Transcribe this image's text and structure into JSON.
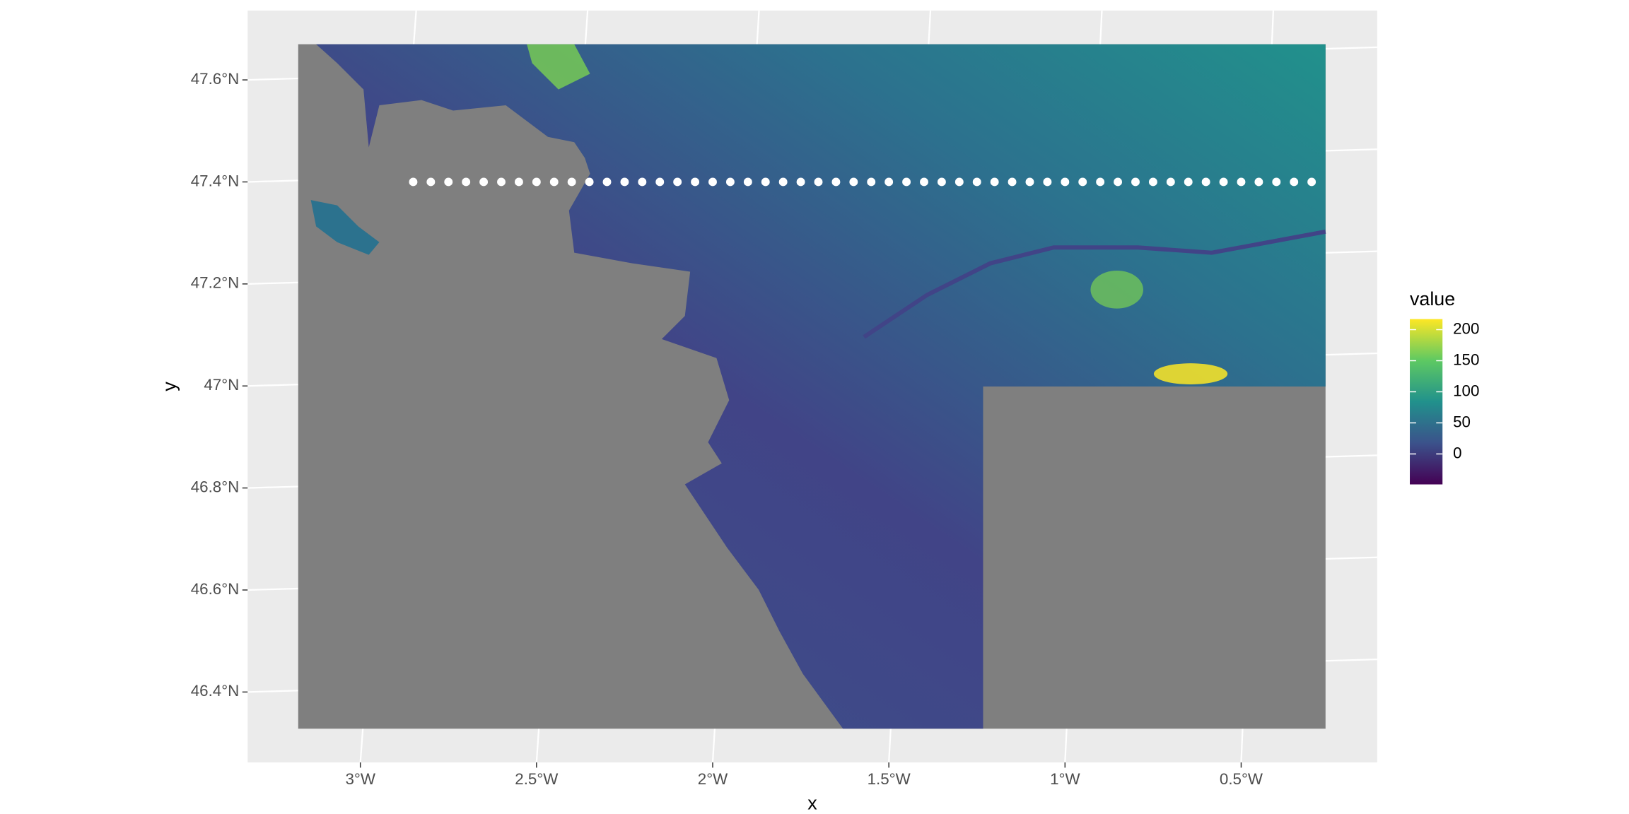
{
  "chart_data": {
    "type": "scatter",
    "xlabel": "x",
    "ylabel": "y",
    "xlim": [
      -3.32,
      -0.114
    ],
    "ylim": [
      46.262,
      47.736
    ],
    "xticks": [
      {
        "value": -3,
        "label": "3°W"
      },
      {
        "value": -2.5,
        "label": "2.5°W"
      },
      {
        "value": -2,
        "label": "2°W"
      },
      {
        "value": -1.5,
        "label": "1.5°W"
      },
      {
        "value": -1,
        "label": "1°W"
      },
      {
        "value": -0.5,
        "label": "0.5°W"
      }
    ],
    "yticks": [
      {
        "value": 46.4,
        "label": "46.4°N"
      },
      {
        "value": 46.6,
        "label": "46.6°N"
      },
      {
        "value": 46.8,
        "label": "46.8°N"
      },
      {
        "value": 47,
        "label": "47°N"
      },
      {
        "value": 47.2,
        "label": "47.2°N"
      },
      {
        "value": 47.4,
        "label": "47.4°N"
      },
      {
        "value": 47.6,
        "label": "47.6°N"
      }
    ],
    "grid": true,
    "color": "#ffffff",
    "x": [
      -2.85,
      -2.8,
      -2.75,
      -2.7,
      -2.65,
      -2.6,
      -2.55,
      -2.5,
      -2.45,
      -2.4,
      -2.35,
      -2.3,
      -2.25,
      -2.2,
      -2.15,
      -2.1,
      -2.05,
      -2,
      -1.95,
      -1.9,
      -1.85,
      -1.8,
      -1.75,
      -1.7,
      -1.65,
      -1.6,
      -1.55,
      -1.5,
      -1.45,
      -1.4,
      -1.35,
      -1.3,
      -1.25,
      -1.2,
      -1.15,
      -1.1,
      -1.05,
      -1,
      -0.95,
      -0.9,
      -0.85,
      -0.8,
      -0.75,
      -0.7,
      -0.65,
      -0.6,
      -0.55,
      -0.5,
      -0.45,
      -0.4,
      -0.35,
      -0.3
    ],
    "y": [
      47.4,
      47.4,
      47.4,
      47.4,
      47.4,
      47.4,
      47.4,
      47.4,
      47.4,
      47.4,
      47.4,
      47.4,
      47.4,
      47.4,
      47.4,
      47.4,
      47.4,
      47.4,
      47.4,
      47.4,
      47.4,
      47.4,
      47.4,
      47.4,
      47.4,
      47.4,
      47.4,
      47.4,
      47.4,
      47.4,
      47.4,
      47.4,
      47.4,
      47.4,
      47.4,
      47.4,
      47.4,
      47.4,
      47.4,
      47.4,
      47.4,
      47.4,
      47.4,
      47.4,
      47.4,
      47.4,
      47.4,
      47.4,
      47.4,
      47.4,
      47.4,
      47.4
    ],
    "legend": {
      "title": "value",
      "lim": [
        -49,
        217
      ],
      "ticks": [
        0,
        50,
        100,
        150,
        200
      ],
      "colors": [
        "#440154",
        "#3b528b",
        "#21918c",
        "#5ec962",
        "#fde725"
      ]
    }
  }
}
